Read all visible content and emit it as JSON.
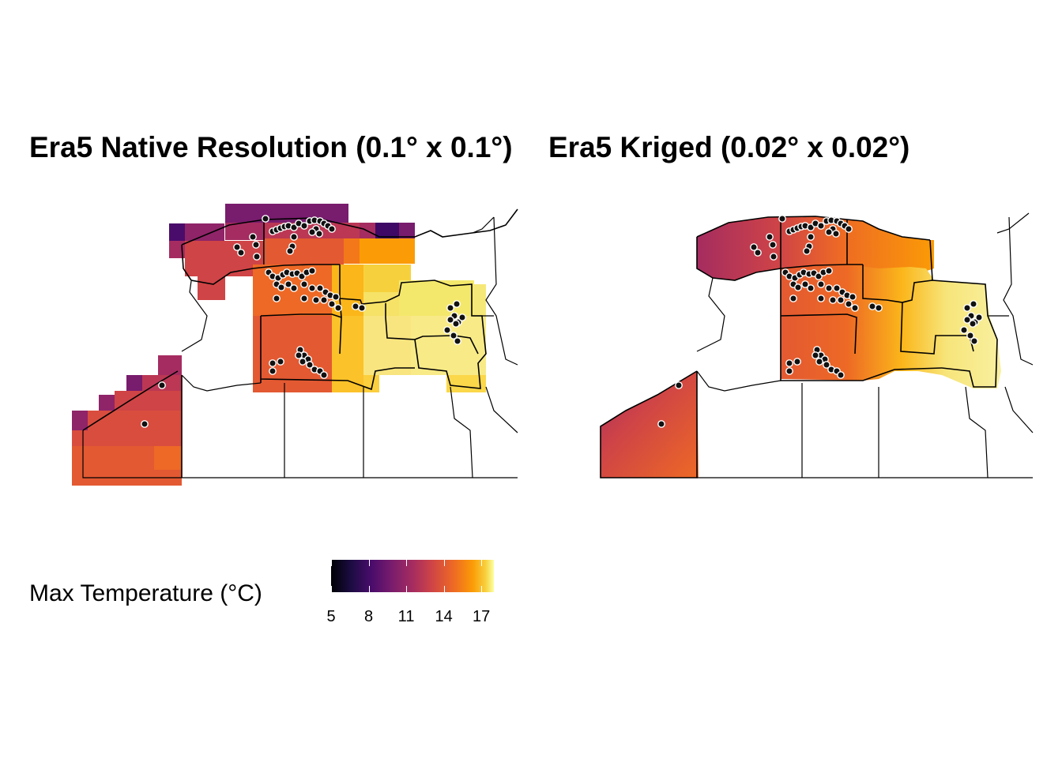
{
  "titles": {
    "left": "Era5 Native Resolution (0.1° x 0.1°)",
    "right": "Era5 Kriged (0.02° x 0.02°)"
  },
  "legend": {
    "title": "Max Temperature (°C)",
    "min": 5,
    "max": 18,
    "ticks": [
      {
        "label": "5",
        "value": 5
      },
      {
        "label": "8",
        "value": 8
      },
      {
        "label": "11",
        "value": 11
      },
      {
        "label": "14",
        "value": 14
      },
      {
        "label": "17",
        "value": 17
      }
    ],
    "palette": "inferno"
  },
  "colors": {
    "low": "#000004",
    "mid_purple": "#781c6d",
    "mid_orange": "#ed6925",
    "high": "#fcffa4",
    "point_fill": "#111111",
    "point_stroke": "#ffffff",
    "boundary": "#000000"
  },
  "panels": [
    {
      "id": "left",
      "style": "native"
    },
    {
      "id": "right",
      "style": "kriged"
    }
  ]
}
